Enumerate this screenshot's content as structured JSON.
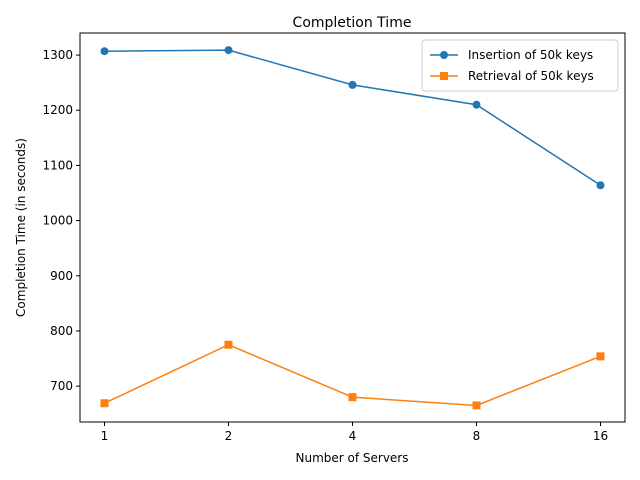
{
  "chart_data": {
    "type": "line",
    "title": "Completion Time",
    "xlabel": "Number of Servers",
    "ylabel": "Completion Time (in seconds)",
    "categories": [
      "1",
      "2",
      "4",
      "8",
      "16"
    ],
    "ylim": [
      635,
      1340
    ],
    "yticks": [
      700,
      800,
      900,
      1000,
      1100,
      1200,
      1300
    ],
    "grid": false,
    "legend_position": "top-right",
    "series": [
      {
        "name": "Insertion of 50k keys",
        "values": [
          1307,
          1309,
          1246,
          1210,
          1064
        ],
        "color": "#1f77b4",
        "marker": "circle"
      },
      {
        "name": "Retrieval of 50k keys",
        "values": [
          669,
          775,
          680,
          665,
          754
        ],
        "color": "#ff7f0e",
        "marker": "square"
      }
    ]
  }
}
